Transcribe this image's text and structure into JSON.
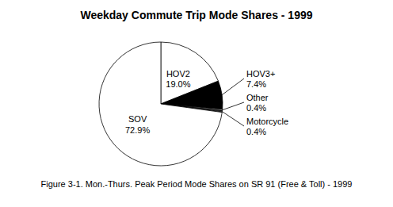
{
  "chart_data": {
    "type": "pie",
    "title": "Weekday Commute Trip Mode Shares - 1999",
    "caption": "Figure 3-1. Mon.-Thurs. Peak Period Mode Shares on SR 91 (Free & Toll) - 1999",
    "categories": [
      "HOV2",
      "HOV3+",
      "Other",
      "Motorcycle",
      "SOV"
    ],
    "values": [
      19.0,
      7.4,
      0.4,
      0.4,
      72.9
    ],
    "value_labels": [
      "19.0%",
      "7.4%",
      "0.4%",
      "0.4%",
      "72.9%"
    ],
    "colors": [
      "#ffffff",
      "#000000",
      "#888888",
      "#333333",
      "#ffffff"
    ],
    "data_labels": true
  }
}
